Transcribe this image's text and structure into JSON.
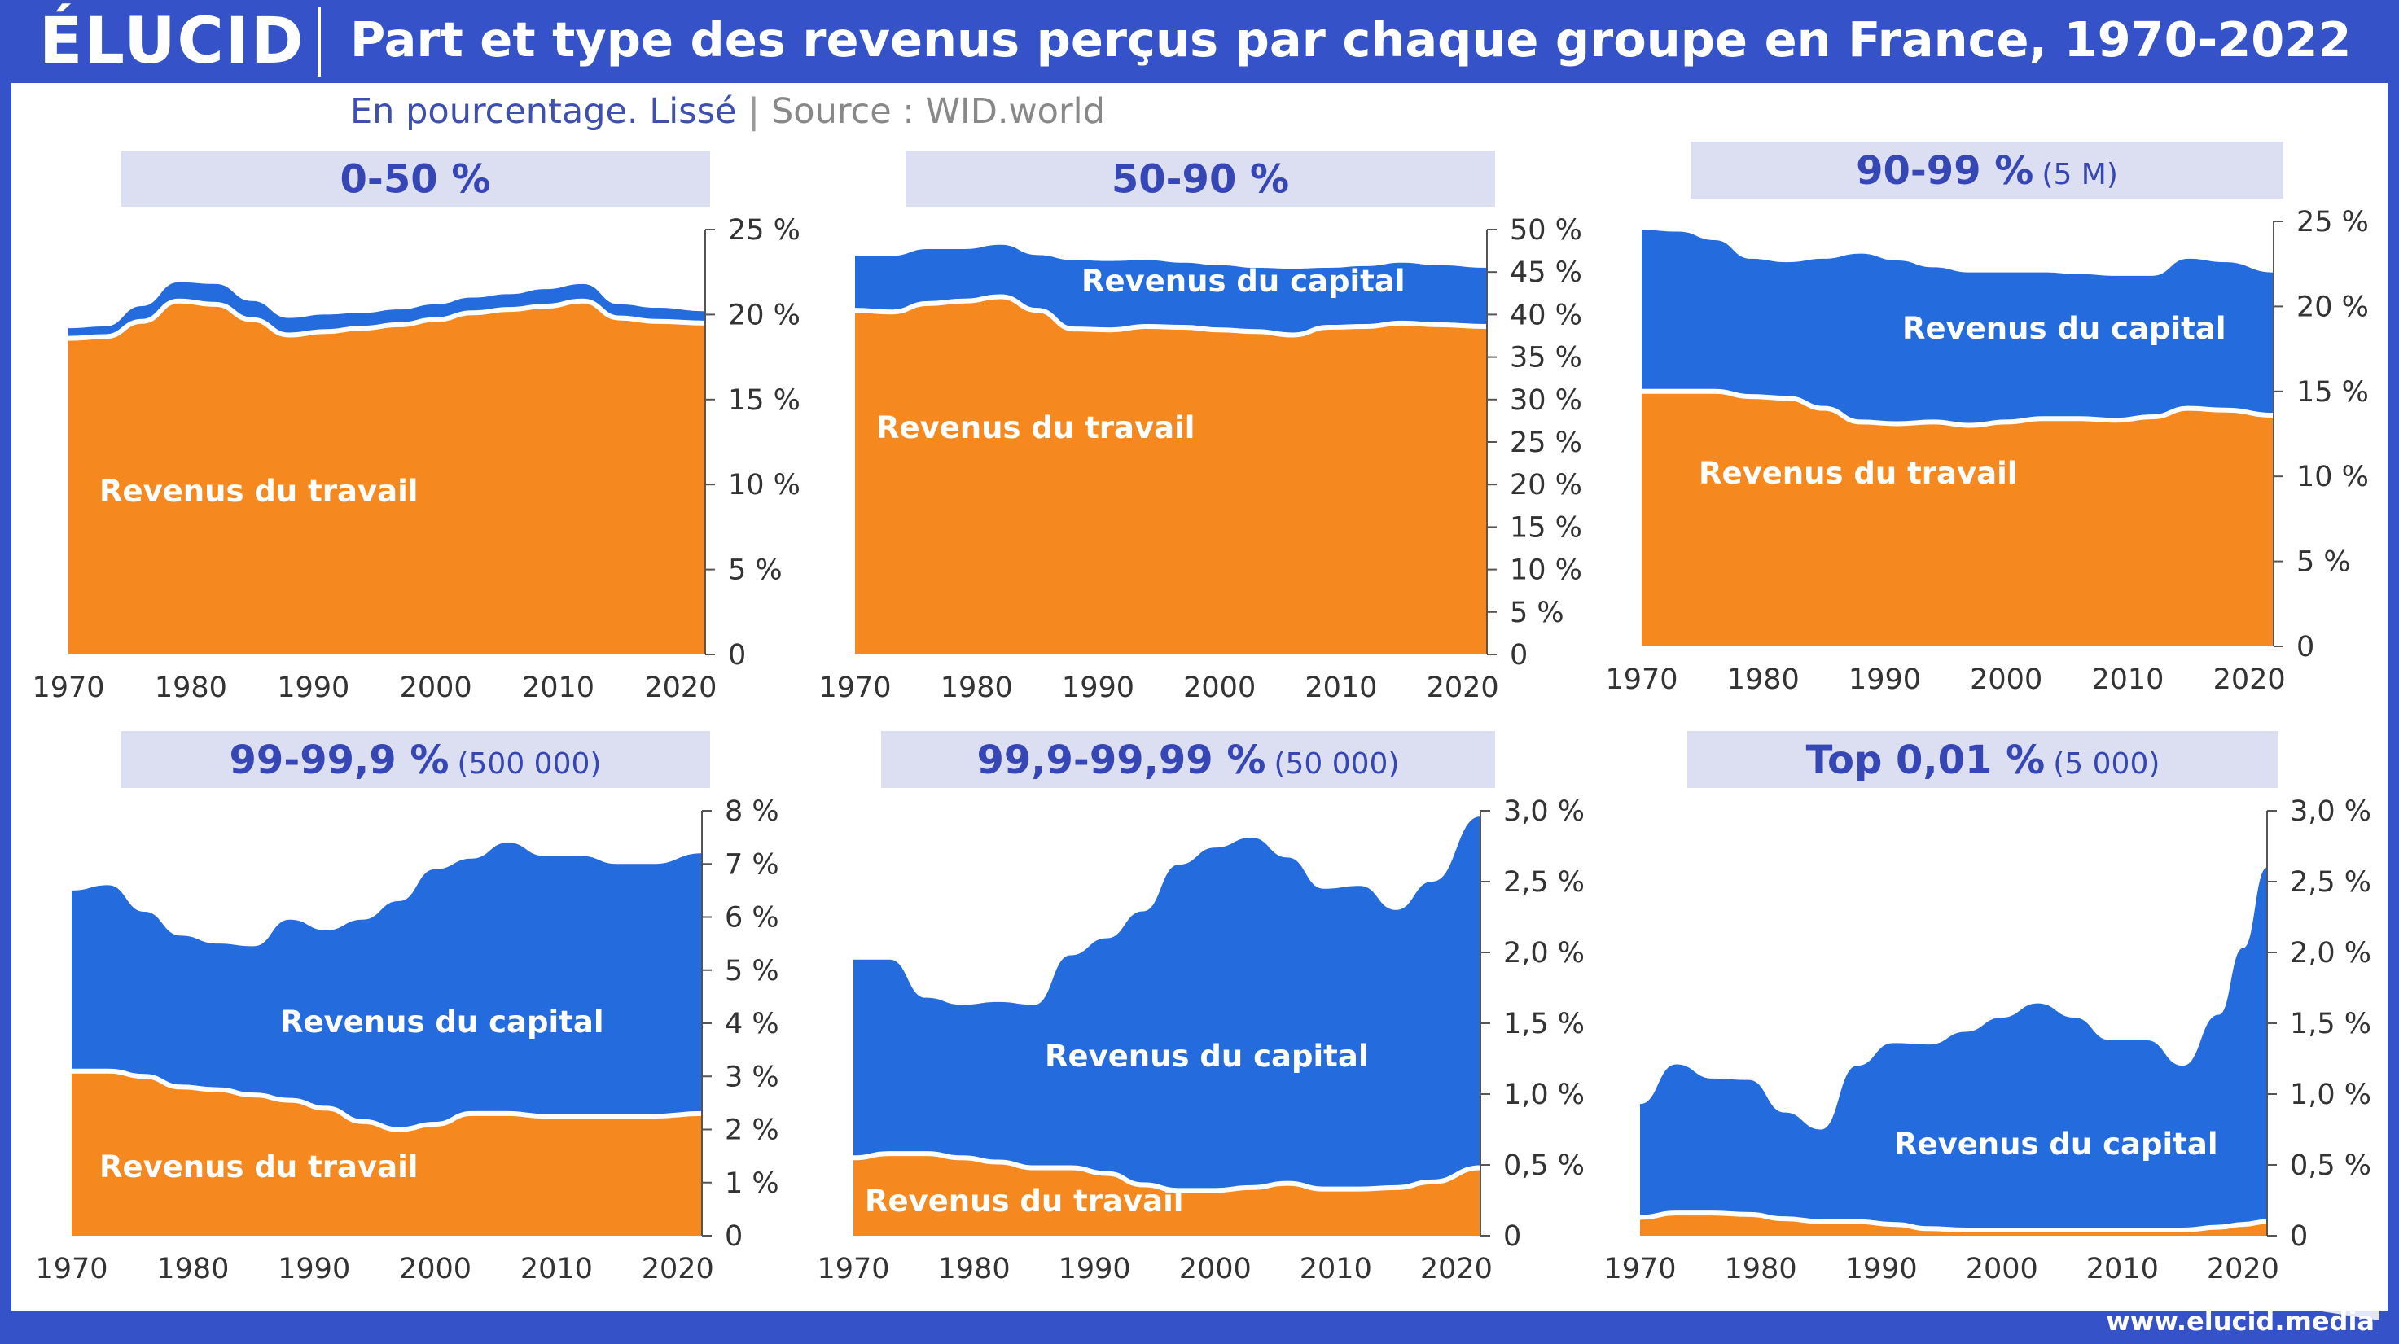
{
  "header": {
    "logo": "ÉLUCID",
    "title": "Part et type des revenus perçus par chaque groupe en France, 1970-2022",
    "subtitle_left": "En pourcentage. Lissé",
    "subtitle_sep": "|",
    "subtitle_source": "Source : WID.world"
  },
  "footer": {
    "url": "www.elucid.media"
  },
  "colors": {
    "travail": "#f5891f",
    "capital": "#246bde",
    "header_bg": "#3552c8"
  },
  "chart_data": [
    {
      "type": "area",
      "stacked": true,
      "group": "0-50 %",
      "group_note": "",
      "ylim": [
        0,
        25
      ],
      "yticks": [
        "0",
        "5 %",
        "10 %",
        "15 %",
        "20 %",
        "25 %"
      ],
      "xticks": [
        "1970",
        "1980",
        "1990",
        "2000",
        "2010",
        "2020"
      ],
      "labels": {
        "travail": "Revenus du travail",
        "capital": ""
      },
      "x": [
        1970,
        1973,
        1976,
        1979,
        1982,
        1985,
        1988,
        1991,
        1994,
        1997,
        2000,
        2003,
        2006,
        2009,
        2012,
        2015,
        2018,
        2022
      ],
      "series": [
        {
          "name": "Revenus du travail",
          "values": [
            18.6,
            18.7,
            19.6,
            20.8,
            20.6,
            19.7,
            18.8,
            19.0,
            19.2,
            19.4,
            19.7,
            20.1,
            20.3,
            20.5,
            20.8,
            19.8,
            19.6,
            19.5
          ]
        },
        {
          "name": "Revenus du capital",
          "values": [
            0.6,
            0.6,
            0.9,
            1.1,
            1.2,
            1.1,
            1.0,
            1.0,
            0.9,
            0.9,
            0.9,
            0.9,
            0.9,
            1.0,
            1.0,
            0.8,
            0.8,
            0.7
          ]
        }
      ]
    },
    {
      "type": "area",
      "stacked": true,
      "group": "50-90 %",
      "group_note": "",
      "ylim": [
        0,
        50
      ],
      "yticks": [
        "0",
        "5 %",
        "10 %",
        "15 %",
        "20 %",
        "25 %",
        "30 %",
        "35 %",
        "40 %",
        "45 %",
        "50 %"
      ],
      "xticks": [
        "1970",
        "1980",
        "1990",
        "2000",
        "2010",
        "2020"
      ],
      "labels": {
        "travail": "Revenus du travail",
        "capital": "Revenus du capital"
      },
      "x": [
        1970,
        1973,
        1976,
        1979,
        1982,
        1985,
        1988,
        1991,
        1994,
        1997,
        2000,
        2003,
        2006,
        2009,
        2012,
        2015,
        2018,
        2022
      ],
      "series": [
        {
          "name": "Revenus du travail",
          "values": [
            40.5,
            40.3,
            41.3,
            41.6,
            42.1,
            40.5,
            38.3,
            38.2,
            38.6,
            38.5,
            38.2,
            38.0,
            37.6,
            38.5,
            38.6,
            39.0,
            38.8,
            38.6
          ]
        },
        {
          "name": "Revenus du capital",
          "values": [
            6.4,
            6.6,
            6.4,
            6.1,
            6.1,
            6.5,
            8.1,
            8.1,
            7.8,
            7.6,
            7.6,
            7.5,
            7.8,
            7.0,
            7.1,
            7.1,
            7.0,
            6.9
          ]
        }
      ]
    },
    {
      "type": "area",
      "stacked": true,
      "group": "90-99 %",
      "group_note": "(5 M)",
      "ylim": [
        0,
        25
      ],
      "yticks": [
        "0",
        "5 %",
        "10 %",
        "15 %",
        "20 %",
        "25 %"
      ],
      "xticks": [
        "1970",
        "1980",
        "1990",
        "2000",
        "2010",
        "2020"
      ],
      "labels": {
        "travail": "Revenus du travail",
        "capital": "Revenus du capital"
      },
      "x": [
        1970,
        1973,
        1976,
        1979,
        1982,
        1985,
        1988,
        1991,
        1994,
        1997,
        2000,
        2003,
        2006,
        2009,
        2012,
        2015,
        2018,
        2022
      ],
      "series": [
        {
          "name": "Revenus du travail",
          "values": [
            15.0,
            15.0,
            15.0,
            14.7,
            14.6,
            14.0,
            13.2,
            13.1,
            13.2,
            13.0,
            13.2,
            13.4,
            13.4,
            13.3,
            13.5,
            14.0,
            13.9,
            13.6
          ]
        },
        {
          "name": "Revenus du capital",
          "values": [
            9.5,
            9.4,
            8.9,
            8.1,
            8.0,
            8.8,
            9.9,
            9.6,
            9.1,
            9.0,
            8.8,
            8.6,
            8.5,
            8.5,
            8.3,
            8.8,
            8.7,
            8.4
          ]
        }
      ]
    },
    {
      "type": "area",
      "stacked": true,
      "group": "99-99,9 %",
      "group_note": "(500 000)",
      "ylim": [
        0,
        8
      ],
      "yticks": [
        "0",
        "1 %",
        "2 %",
        "3 %",
        "4 %",
        "5 %",
        "6 %",
        "7 %",
        "8 %"
      ],
      "xticks": [
        "1970",
        "1980",
        "1990",
        "2000",
        "2010",
        "2020"
      ],
      "labels": {
        "travail": "Revenus du travail",
        "capital": "Revenus du capital"
      },
      "x": [
        1970,
        1973,
        1976,
        1979,
        1982,
        1985,
        1988,
        1991,
        1994,
        1997,
        2000,
        2003,
        2006,
        2009,
        2012,
        2015,
        2018,
        2022
      ],
      "series": [
        {
          "name": "Revenus du travail",
          "values": [
            3.1,
            3.1,
            3.0,
            2.8,
            2.75,
            2.65,
            2.55,
            2.4,
            2.15,
            2.0,
            2.1,
            2.3,
            2.3,
            2.25,
            2.25,
            2.25,
            2.25,
            2.3
          ]
        },
        {
          "name": "Revenus du capital",
          "values": [
            3.4,
            3.5,
            3.1,
            2.85,
            2.75,
            2.8,
            3.4,
            3.35,
            3.8,
            4.3,
            4.8,
            4.8,
            5.1,
            4.9,
            4.9,
            4.75,
            4.75,
            4.9
          ]
        }
      ]
    },
    {
      "type": "area",
      "stacked": true,
      "group": "99,9-99,99 %",
      "group_note": "(50 000)",
      "ylim": [
        0,
        3.0
      ],
      "yticks": [
        "0",
        "0,5 %",
        "1,0 %",
        "1,5 %",
        "2,0 %",
        "2,5 %",
        "3,0 %"
      ],
      "xticks": [
        "1970",
        "1980",
        "1990",
        "2000",
        "2010",
        "2020"
      ],
      "labels": {
        "travail": "Revenus du travail",
        "capital": "Revenus du capital"
      },
      "x": [
        1970,
        1973,
        1976,
        1979,
        1982,
        1985,
        1988,
        1991,
        1994,
        1997,
        2000,
        2003,
        2006,
        2009,
        2012,
        2015,
        2018,
        2022
      ],
      "series": [
        {
          "name": "Revenus du travail",
          "values": [
            0.55,
            0.58,
            0.58,
            0.55,
            0.52,
            0.48,
            0.48,
            0.44,
            0.36,
            0.32,
            0.32,
            0.34,
            0.37,
            0.33,
            0.33,
            0.34,
            0.38,
            0.48
          ]
        },
        {
          "name": "Revenus du capital",
          "values": [
            1.4,
            1.37,
            1.1,
            1.08,
            1.13,
            1.15,
            1.5,
            1.66,
            1.93,
            2.3,
            2.42,
            2.47,
            2.3,
            2.12,
            2.14,
            1.96,
            2.12,
            2.48
          ]
        }
      ]
    },
    {
      "type": "area",
      "stacked": true,
      "group": "Top 0,01 %",
      "group_note": "(5 000)",
      "ylim": [
        0,
        3.0
      ],
      "yticks": [
        "0",
        "0,5 %",
        "1,0 %",
        "1,5 %",
        "2,0 %",
        "2,5 %",
        "3,0 %"
      ],
      "xticks": [
        "1970",
        "1980",
        "1990",
        "2000",
        "2010",
        "2020"
      ],
      "labels": {
        "travail": "",
        "capital": "Revenus du capital"
      },
      "x": [
        1970,
        1973,
        1976,
        1979,
        1982,
        1985,
        1988,
        1991,
        1994,
        1997,
        2000,
        2003,
        2006,
        2009,
        2012,
        2015,
        2018,
        2020,
        2022
      ],
      "series": [
        {
          "name": "Revenus du travail",
          "values": [
            0.13,
            0.16,
            0.16,
            0.15,
            0.12,
            0.1,
            0.1,
            0.08,
            0.05,
            0.04,
            0.04,
            0.04,
            0.04,
            0.04,
            0.04,
            0.04,
            0.06,
            0.08,
            0.1
          ]
        },
        {
          "name": "Revenus du capital",
          "values": [
            0.8,
            1.05,
            0.95,
            0.95,
            0.75,
            0.65,
            1.1,
            1.28,
            1.3,
            1.4,
            1.5,
            1.6,
            1.5,
            1.34,
            1.34,
            1.16,
            1.5,
            1.95,
            2.5
          ]
        }
      ]
    }
  ]
}
